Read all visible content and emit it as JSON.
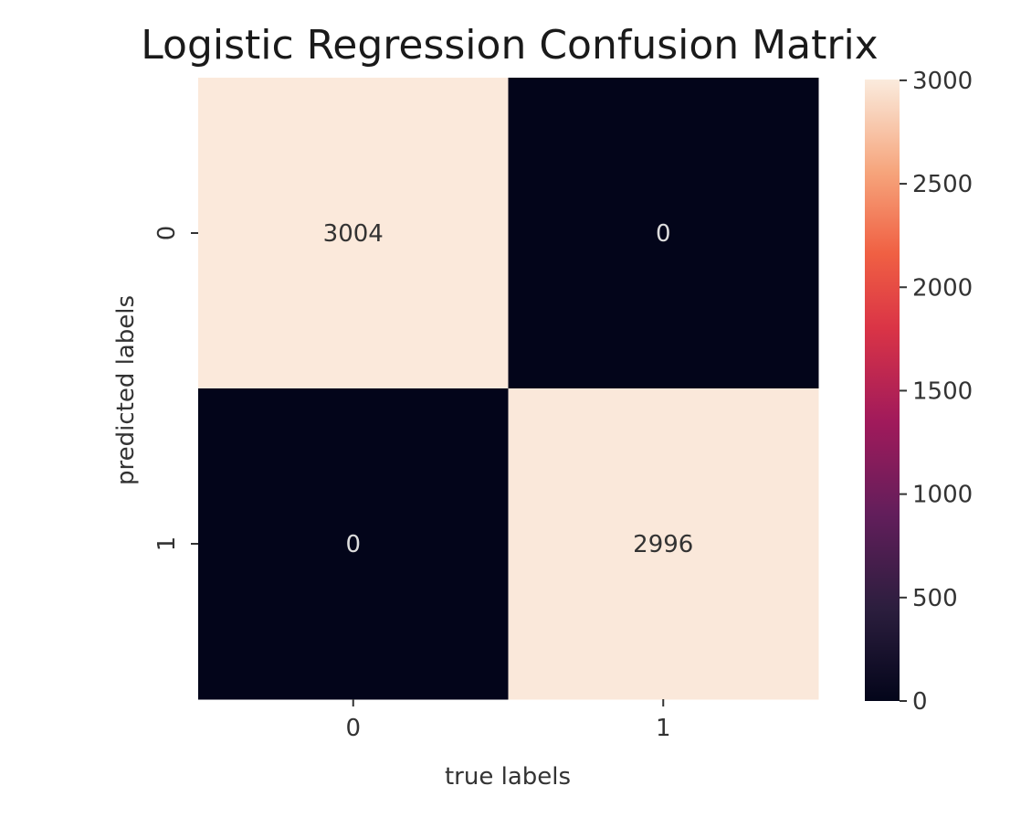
{
  "chart_data": {
    "type": "heatmap",
    "title": "Logistic Regression Confusion Matrix",
    "xlabel": "true labels",
    "ylabel": "predicted labels",
    "x_categories": [
      "0",
      "1"
    ],
    "y_categories": [
      "0",
      "1"
    ],
    "matrix": [
      [
        3004,
        0
      ],
      [
        0,
        2996
      ]
    ],
    "colorbar": {
      "min": 0,
      "max": 3004,
      "ticks": [
        0,
        500,
        1000,
        1500,
        2000,
        2500,
        3000
      ],
      "colormap": "rocket"
    },
    "colors": {
      "high": "#fbe9db",
      "low": "#03051a",
      "annot_on_light": "#333333",
      "annot_on_dark": "#dddddd"
    }
  }
}
